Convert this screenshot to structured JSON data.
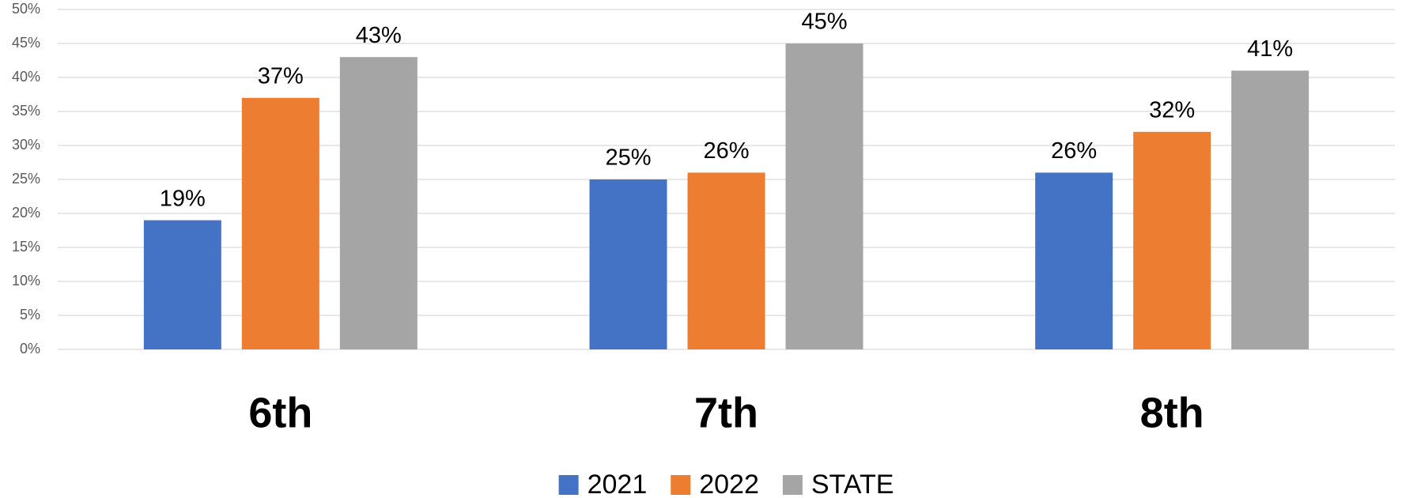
{
  "chart_data": {
    "type": "bar",
    "categories": [
      "6th",
      "7th",
      "8th"
    ],
    "series": [
      {
        "name": "2021",
        "color": "#4472c4",
        "values": [
          19,
          25,
          26
        ],
        "value_labels": [
          "19%",
          "25%",
          "26%"
        ]
      },
      {
        "name": "2022",
        "color": "#ed7d31",
        "values": [
          37,
          26,
          32
        ],
        "value_labels": [
          "37%",
          "26%",
          "32%"
        ]
      },
      {
        "name": "STATE",
        "color": "#a5a5a5",
        "values": [
          43,
          45,
          41
        ],
        "value_labels": [
          "43%",
          "45%",
          "41%"
        ]
      }
    ],
    "ylim": [
      0,
      50
    ],
    "yticks": [
      {
        "value": 0,
        "label": "0%"
      },
      {
        "value": 5,
        "label": "5%"
      },
      {
        "value": 10,
        "label": "10%"
      },
      {
        "value": 15,
        "label": "15%"
      },
      {
        "value": 20,
        "label": "20%"
      },
      {
        "value": 25,
        "label": "25%"
      },
      {
        "value": 30,
        "label": "30%"
      },
      {
        "value": 35,
        "label": "35%"
      },
      {
        "value": 40,
        "label": "40%"
      },
      {
        "value": 45,
        "label": "45%"
      },
      {
        "value": 50,
        "label": "50%"
      }
    ],
    "grid": true,
    "legend": "bottom"
  }
}
